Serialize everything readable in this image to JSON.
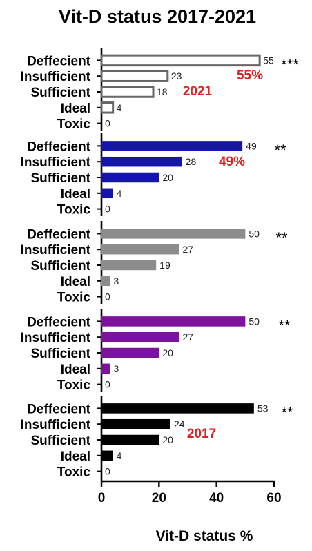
{
  "chart_data": {
    "type": "bar",
    "title": "Vit-D status 2017-2021",
    "xlabel": "Vit-D status %",
    "xlim": [
      0,
      60
    ],
    "xticks": [
      0,
      20,
      40,
      60
    ],
    "categories": [
      "Deffecient",
      "Insufficient",
      "Sufficient",
      "Ideal",
      "Toxic"
    ],
    "panels": [
      {
        "color": "#666666",
        "fill": "#ffffff",
        "values": [
          55,
          23,
          18,
          4,
          0
        ],
        "significance": "***",
        "annotations": [
          {
            "text": "55%",
            "color": "#e02020"
          },
          {
            "text": "2021",
            "color": "#e02020"
          }
        ]
      },
      {
        "color": "#1515a8",
        "fill": "#1515a8",
        "values": [
          49,
          28,
          20,
          4,
          0
        ],
        "significance": "**",
        "annotations": [
          {
            "text": "49%",
            "color": "#e02020"
          }
        ]
      },
      {
        "color": "#8c8c8c",
        "fill": "#8c8c8c",
        "values": [
          50,
          27,
          19,
          3,
          0
        ],
        "significance": "**",
        "annotations": []
      },
      {
        "color": "#7b139b",
        "fill": "#7b139b",
        "values": [
          50,
          27,
          20,
          3,
          0
        ],
        "significance": "**",
        "annotations": []
      },
      {
        "color": "#000000",
        "fill": "#000000",
        "values": [
          53,
          24,
          20,
          4,
          0
        ],
        "significance": "**",
        "annotations": [
          {
            "text": "2017",
            "color": "#e02020"
          }
        ]
      }
    ]
  }
}
